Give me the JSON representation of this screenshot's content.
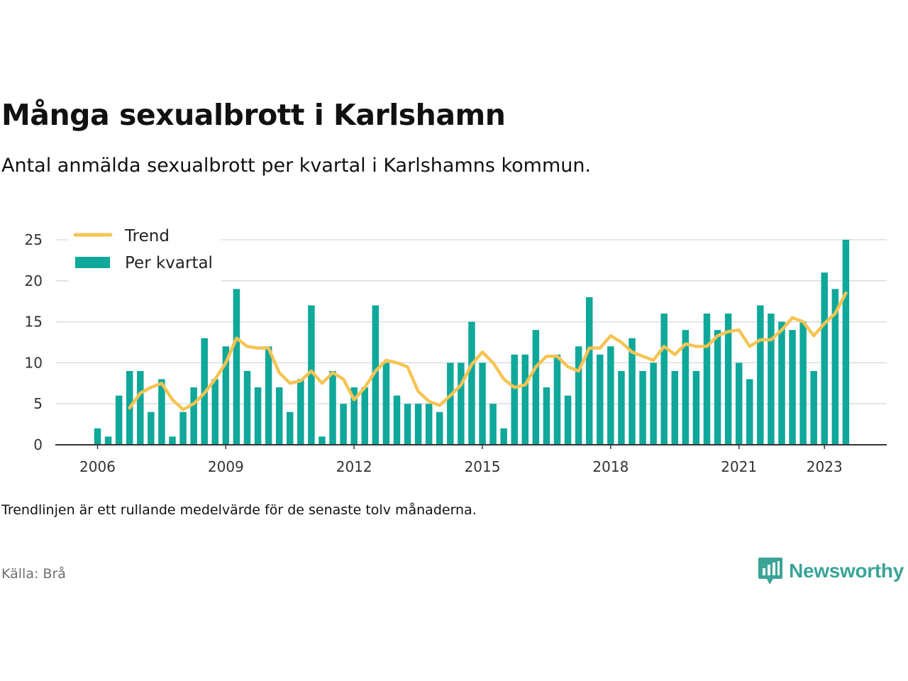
{
  "title": "Många sexualbrott i Karlshamn",
  "subtitle": "Antal anmälda sexualbrott per kvartal i Karlshamns kommun.",
  "note": "Trendlinjen är ett rullande medelvärde för de senaste tolv månaderna.",
  "source": "Källa: Brå",
  "logo_text": "Newsworthy",
  "colors": {
    "bar": "#0fa89a",
    "trend": "#f6c453",
    "grid": "#dddddd",
    "axis": "#333333"
  },
  "chart_data": {
    "type": "bar",
    "x_start_year": 2006,
    "x_start_quarter": 1,
    "quarters_per_year": 4,
    "x_tick_labels": [
      "2006",
      "2009",
      "2012",
      "2015",
      "2018",
      "2021",
      "2023"
    ],
    "y_ticks": [
      0,
      5,
      10,
      15,
      20,
      25
    ],
    "ylim": [
      0,
      25
    ],
    "legend_position": "top-left",
    "series": [
      {
        "name": "Per kvartal",
        "type": "bar",
        "values": [
          2,
          1,
          6,
          9,
          9,
          4,
          8,
          1,
          4,
          7,
          13,
          8,
          12,
          19,
          9,
          7,
          12,
          7,
          4,
          8,
          17,
          1,
          9,
          5,
          7,
          7,
          17,
          10,
          6,
          5,
          5,
          5,
          4,
          10,
          10,
          15,
          10,
          5,
          2,
          11,
          11,
          14,
          7,
          11,
          6,
          12,
          18,
          11,
          12,
          9,
          13,
          9,
          10,
          16,
          9,
          14,
          9,
          16,
          14,
          16,
          10,
          8,
          17,
          16,
          15,
          14,
          15,
          9,
          21,
          19,
          25
        ]
      },
      {
        "name": "Trend",
        "type": "line",
        "start_index": 3,
        "values": [
          4.5,
          6.3,
          7.0,
          7.5,
          5.5,
          4.3,
          5.0,
          6.3,
          8.0,
          10.0,
          13.0,
          12.0,
          11.8,
          11.8,
          8.8,
          7.5,
          7.8,
          9.0,
          7.5,
          8.8,
          8.0,
          5.5,
          7.0,
          9.0,
          10.3,
          10.0,
          9.5,
          6.5,
          5.3,
          4.8,
          6.0,
          7.3,
          9.8,
          11.3,
          10.0,
          8.0,
          7.0,
          7.3,
          9.5,
          10.8,
          10.8,
          9.5,
          9.0,
          11.8,
          11.8,
          13.3,
          12.5,
          11.3,
          10.8,
          10.3,
          12.0,
          11.0,
          12.3,
          12.0,
          12.0,
          13.3,
          13.8,
          14.0,
          12.0,
          12.8,
          12.8,
          14.0,
          15.5,
          15.0,
          13.3,
          14.8,
          16.0,
          18.5
        ]
      }
    ]
  }
}
